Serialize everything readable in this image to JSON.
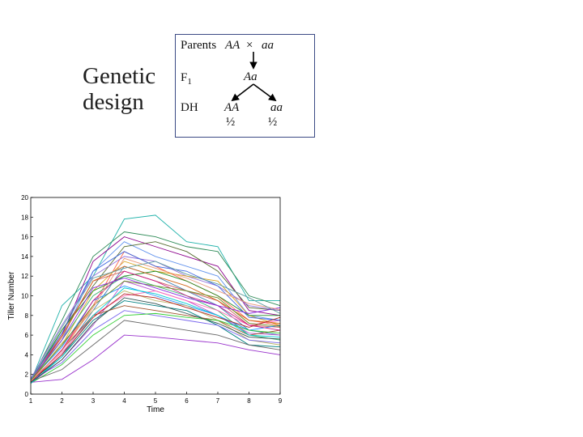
{
  "heading": [
    "Genetic",
    "design"
  ],
  "design_box": {
    "parents_label": "Parents",
    "parent1": "AA",
    "cross_symbol": "×",
    "parent2": "aa",
    "f1_label": "F",
    "f1_subscript": "1",
    "f1_genotype": "Aa",
    "dh_label": "DH",
    "dh_genotype1": "AA",
    "dh_genotype2": "aa",
    "dh_freq1": "½",
    "dh_freq2": "½"
  },
  "chart_data": {
    "type": "line",
    "xlabel": "Time",
    "ylabel": "Tiller Number",
    "xlim": [
      1,
      9
    ],
    "ylim": [
      0,
      20
    ],
    "xticks": [
      "1",
      "2",
      "3",
      "4",
      "5",
      "6",
      "7",
      "8",
      "9"
    ],
    "yticks": [
      "0",
      "2",
      "4",
      "6",
      "8",
      "10",
      "12",
      "14",
      "16",
      "18",
      "20"
    ],
    "grid": false,
    "legend": "none",
    "x": [
      1,
      2,
      3,
      4,
      5,
      6,
      7,
      8,
      9
    ],
    "series": [
      {
        "values": [
          1.3,
          9.0,
          12.0,
          17.8,
          18.2,
          15.5,
          15.0,
          9.5,
          9.5
        ],
        "color": "#20b2aa"
      },
      {
        "values": [
          1.4,
          7.5,
          14.0,
          16.5,
          16.0,
          15.0,
          14.5,
          10.0,
          9.0
        ],
        "color": "#2e8b57"
      },
      {
        "values": [
          1.2,
          6.0,
          13.5,
          16.0,
          15.0,
          14.0,
          13.0,
          8.5,
          8.0
        ],
        "color": "#8b008b"
      },
      {
        "values": [
          1.5,
          5.5,
          12.5,
          15.5,
          14.0,
          13.0,
          12.0,
          8.0,
          7.5
        ],
        "color": "#6495ed"
      },
      {
        "values": [
          1.3,
          6.5,
          11.0,
          15.0,
          15.5,
          14.5,
          12.5,
          8.8,
          8.5
        ],
        "color": "#556b2f"
      },
      {
        "values": [
          1.1,
          4.5,
          9.0,
          14.5,
          13.0,
          11.5,
          10.0,
          7.5,
          7.0
        ],
        "color": "#ff6347"
      },
      {
        "values": [
          1.6,
          7.0,
          12.0,
          14.0,
          13.5,
          12.0,
          11.0,
          9.0,
          8.5
        ],
        "color": "#9370db"
      },
      {
        "values": [
          1.4,
          5.0,
          10.5,
          13.5,
          12.5,
          12.0,
          11.5,
          8.0,
          7.0
        ],
        "color": "#daa520"
      },
      {
        "values": [
          1.2,
          4.0,
          8.5,
          13.0,
          12.0,
          10.5,
          9.0,
          6.5,
          6.0
        ],
        "color": "#4682b4"
      },
      {
        "values": [
          1.5,
          6.0,
          11.5,
          12.5,
          11.5,
          10.5,
          9.5,
          7.0,
          6.8
        ],
        "color": "#cd5c5c"
      },
      {
        "values": [
          1.3,
          5.5,
          10.0,
          12.0,
          11.0,
          10.0,
          8.5,
          6.0,
          5.5
        ],
        "color": "#3cb371"
      },
      {
        "values": [
          1.1,
          3.5,
          7.0,
          11.5,
          10.5,
          9.5,
          8.0,
          6.2,
          6.0
        ],
        "color": "#ba55d3"
      },
      {
        "values": [
          1.4,
          4.8,
          9.5,
          11.0,
          10.0,
          9.0,
          8.0,
          6.5,
          7.0
        ],
        "color": "#1e90ff"
      },
      {
        "values": [
          1.2,
          5.2,
          8.5,
          10.5,
          9.5,
          9.0,
          7.5,
          5.5,
          5.0
        ],
        "color": "#bdb76b"
      },
      {
        "values": [
          1.5,
          4.2,
          8.0,
          10.0,
          10.5,
          9.5,
          8.5,
          7.0,
          7.5
        ],
        "color": "#ff69b4"
      },
      {
        "values": [
          1.3,
          3.8,
          7.5,
          9.5,
          9.0,
          8.5,
          7.0,
          5.0,
          4.8
        ],
        "color": "#008080"
      },
      {
        "values": [
          1.2,
          4.5,
          8.0,
          9.0,
          8.5,
          8.0,
          7.5,
          6.0,
          6.5
        ],
        "color": "#a0522d"
      },
      {
        "values": [
          1.4,
          3.2,
          6.5,
          8.5,
          8.0,
          7.5,
          7.0,
          5.5,
          5.2
        ],
        "color": "#7b68ee"
      },
      {
        "values": [
          1.1,
          3.0,
          6.0,
          8.0,
          8.2,
          7.8,
          7.5,
          6.5,
          6.2
        ],
        "color": "#32cd32"
      },
      {
        "values": [
          1.3,
          2.5,
          5.0,
          7.5,
          7.0,
          6.5,
          6.0,
          5.0,
          4.5
        ],
        "color": "#696969"
      },
      {
        "values": [
          1.2,
          1.5,
          3.5,
          6.0,
          5.8,
          5.5,
          5.2,
          4.5,
          4.0
        ],
        "color": "#9932cc"
      },
      {
        "values": [
          1.4,
          6.5,
          10.5,
          12.0,
          12.5,
          11.5,
          10.0,
          8.0,
          8.0
        ],
        "color": "#228b22"
      },
      {
        "values": [
          1.3,
          5.8,
          11.5,
          13.0,
          12.0,
          11.0,
          9.5,
          7.5,
          7.2
        ],
        "color": "#d2691e"
      },
      {
        "values": [
          1.5,
          6.2,
          12.5,
          14.5,
          13.0,
          12.5,
          11.0,
          7.8,
          7.5
        ],
        "color": "#4169e1"
      },
      {
        "values": [
          1.2,
          4.5,
          9.5,
          12.5,
          11.5,
          10.0,
          9.0,
          7.0,
          6.5
        ],
        "color": "#c71585"
      },
      {
        "values": [
          1.4,
          5.0,
          9.0,
          11.5,
          11.0,
          10.5,
          9.8,
          7.2,
          6.9
        ],
        "color": "#6b8e23"
      },
      {
        "values": [
          1.1,
          3.8,
          8.0,
          10.8,
          10.2,
          9.2,
          8.0,
          6.0,
          5.8
        ],
        "color": "#00ced1"
      },
      {
        "values": [
          1.3,
          4.0,
          7.8,
          10.2,
          9.8,
          8.8,
          7.8,
          6.8,
          7.8
        ],
        "color": "#b22222"
      },
      {
        "values": [
          1.5,
          5.5,
          10.8,
          11.8,
          10.8,
          9.8,
          9.0,
          8.2,
          8.8
        ],
        "color": "#8a2be2"
      },
      {
        "values": [
          1.2,
          3.5,
          7.2,
          9.8,
          9.2,
          8.2,
          7.2,
          5.8,
          5.6
        ],
        "color": "#2f4f4f"
      },
      {
        "values": [
          1.3,
          4.4,
          8.8,
          13.8,
          12.8,
          11.8,
          10.5,
          9.2,
          8.6
        ],
        "color": "#e9967a"
      },
      {
        "values": [
          1.4,
          6.8,
          11.8,
          12.8,
          13.5,
          12.2,
          11.2,
          9.8,
          8.2
        ],
        "color": "#5f9ea0"
      }
    ]
  }
}
